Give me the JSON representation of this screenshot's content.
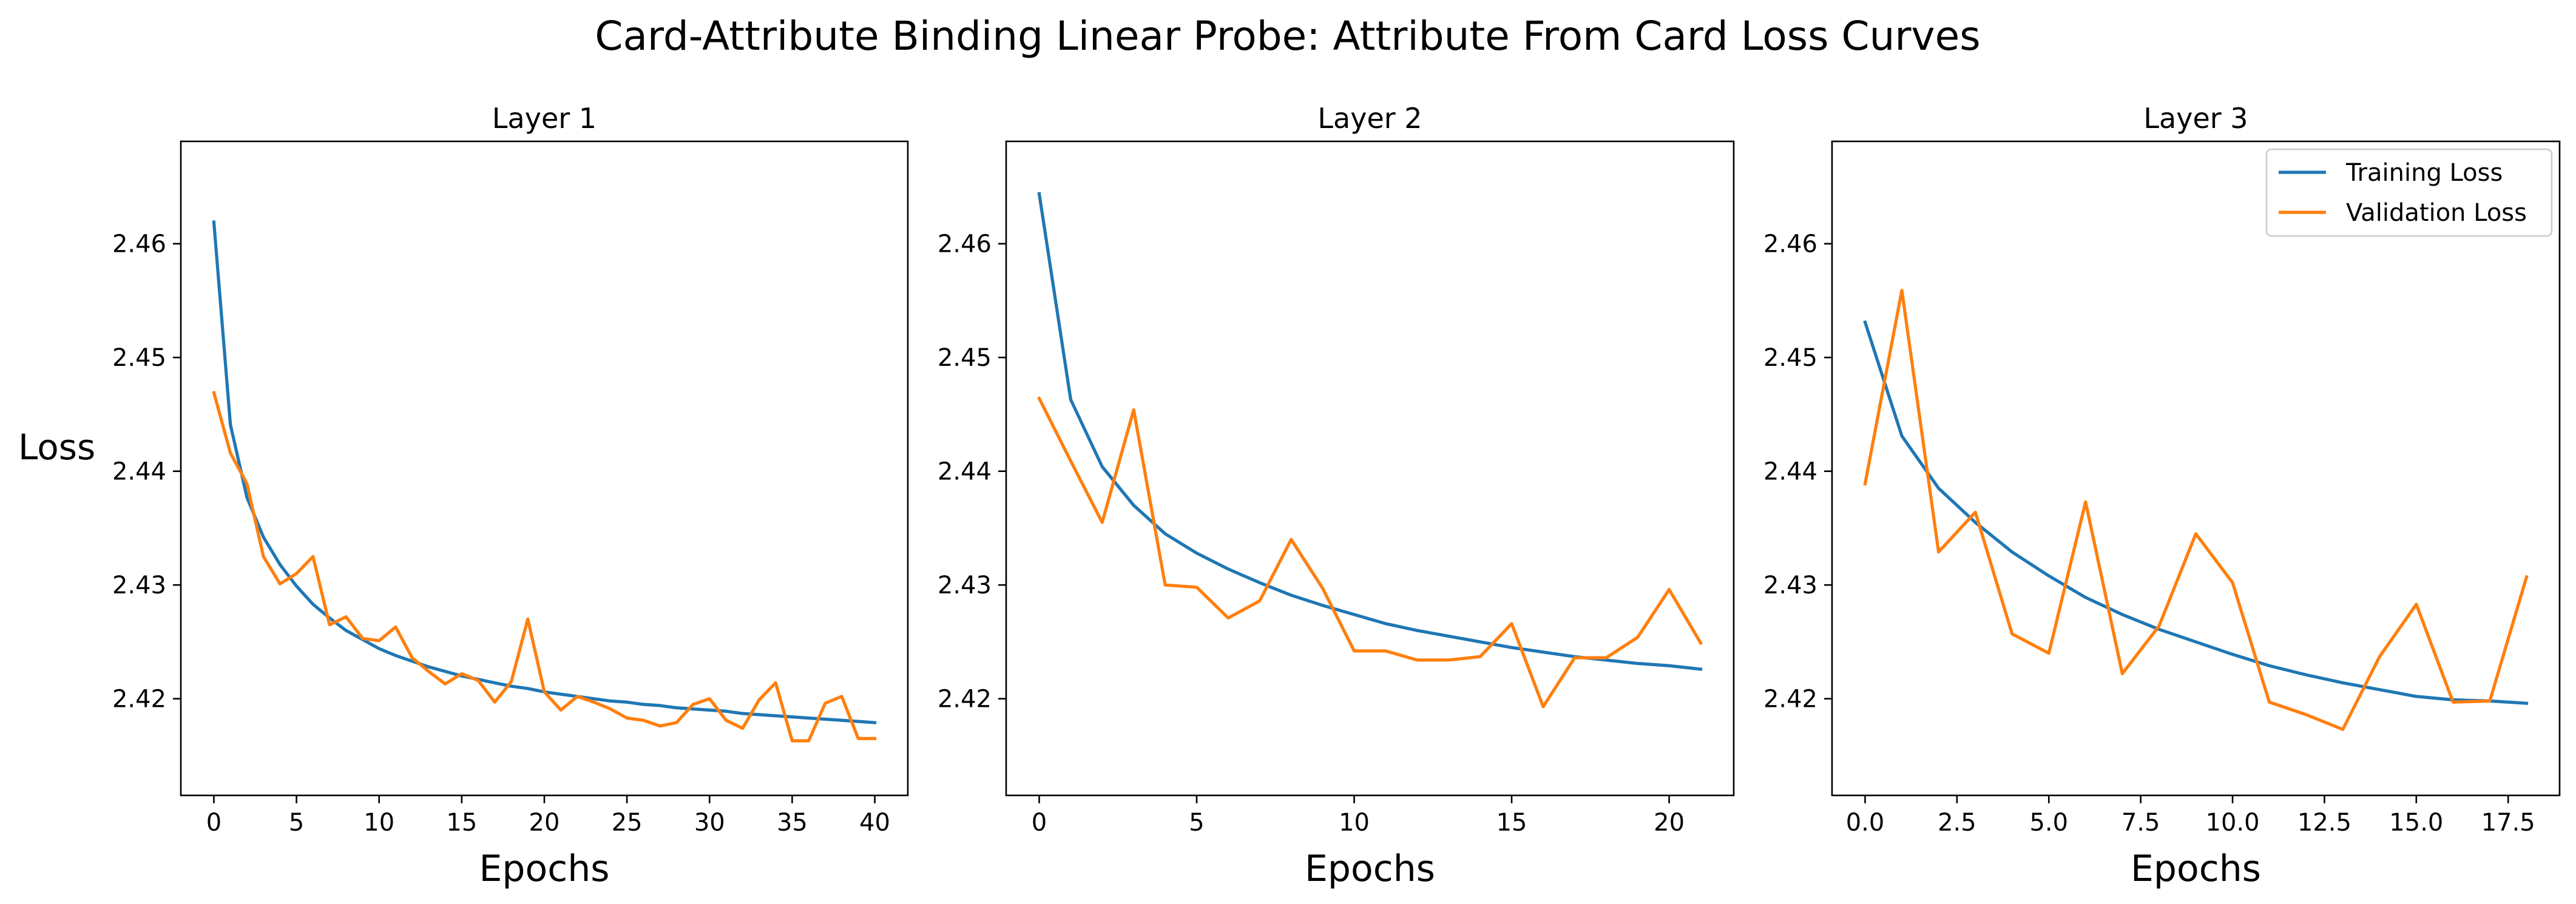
{
  "figure_title": "Card-Attribute Binding Linear Probe: Attribute From Card Loss Curves",
  "colors": {
    "training": "#1f77b4",
    "validation": "#ff7f0e",
    "axes": "#000000"
  },
  "chart_data": [
    {
      "type": "line",
      "title": "Layer 1",
      "xlabel": "Epochs",
      "ylabel": "Loss",
      "xlim": [
        -2,
        42
      ],
      "ylim": [
        2.4115,
        2.469
      ],
      "xticks": [
        0,
        5,
        10,
        15,
        20,
        25,
        30,
        35,
        40
      ],
      "xtick_labels": [
        "0",
        "5",
        "10",
        "15",
        "20",
        "25",
        "30",
        "35",
        "40"
      ],
      "yticks": [
        2.42,
        2.43,
        2.44,
        2.45,
        2.46
      ],
      "ytick_labels": [
        "2.42",
        "2.43",
        "2.44",
        "2.45",
        "2.46"
      ],
      "legend": false,
      "series": [
        {
          "name": "Training Loss",
          "x": [
            0,
            1,
            2,
            3,
            4,
            5,
            6,
            7,
            8,
            9,
            10,
            11,
            12,
            13,
            14,
            15,
            16,
            17,
            18,
            19,
            20,
            21,
            22,
            23,
            24,
            25,
            26,
            27,
            28,
            29,
            30,
            31,
            32,
            33,
            34,
            35,
            36,
            37,
            38,
            39,
            40
          ],
          "values": [
            2.4619,
            2.4441,
            2.4377,
            2.4342,
            2.4318,
            2.4299,
            2.4283,
            2.4271,
            2.426,
            2.4252,
            2.4244,
            2.4238,
            2.4233,
            2.4228,
            2.4224,
            2.422,
            2.4217,
            2.4214,
            2.4211,
            2.4209,
            2.4206,
            2.4204,
            2.4202,
            2.42,
            2.4198,
            2.4197,
            2.4195,
            2.4194,
            2.4192,
            2.4191,
            2.419,
            2.4189,
            2.4187,
            2.4186,
            2.4185,
            2.4184,
            2.4183,
            2.4182,
            2.4181,
            2.418,
            2.4179
          ]
        },
        {
          "name": "Validation Loss",
          "x": [
            0,
            1,
            2,
            3,
            4,
            5,
            6,
            7,
            8,
            9,
            10,
            11,
            12,
            13,
            14,
            15,
            16,
            17,
            18,
            19,
            20,
            21,
            22,
            23,
            24,
            25,
            26,
            27,
            28,
            29,
            30,
            31,
            32,
            33,
            34,
            35,
            36,
            37,
            38,
            39,
            40
          ],
          "values": [
            2.4469,
            2.4416,
            2.4389,
            2.4325,
            2.4301,
            2.431,
            2.4325,
            2.4265,
            2.4272,
            2.4253,
            2.4251,
            2.4263,
            2.4236,
            2.4224,
            2.4213,
            2.4222,
            2.4216,
            2.4197,
            2.4215,
            2.427,
            2.4206,
            2.419,
            2.4202,
            2.4197,
            2.4191,
            2.4183,
            2.4181,
            2.4176,
            2.4179,
            2.4195,
            2.42,
            2.4181,
            2.4174,
            2.4199,
            2.4214,
            2.4163,
            2.4163,
            2.4196,
            2.4202,
            2.4165,
            2.4165
          ]
        }
      ]
    },
    {
      "type": "line",
      "title": "Layer 2",
      "xlabel": "Epochs",
      "ylabel": "",
      "xlim": [
        -1.05,
        22.05
      ],
      "ylim": [
        2.4115,
        2.469
      ],
      "xticks": [
        0,
        5,
        10,
        15,
        20
      ],
      "xtick_labels": [
        "0",
        "5",
        "10",
        "15",
        "20"
      ],
      "yticks": [
        2.42,
        2.43,
        2.44,
        2.45,
        2.46
      ],
      "ytick_labels": [
        "2.42",
        "2.43",
        "2.44",
        "2.45",
        "2.46"
      ],
      "legend": false,
      "series": [
        {
          "name": "Training Loss",
          "x": [
            0,
            1,
            2,
            3,
            4,
            5,
            6,
            7,
            8,
            9,
            10,
            11,
            12,
            13,
            14,
            15,
            16,
            17,
            18,
            19,
            20,
            21
          ],
          "values": [
            2.4644,
            2.4463,
            2.4404,
            2.437,
            2.4345,
            2.4328,
            2.4314,
            2.4302,
            2.4291,
            2.4282,
            2.4274,
            2.4266,
            2.426,
            2.4255,
            2.425,
            2.4245,
            2.4241,
            2.4237,
            2.4234,
            2.4231,
            2.4229,
            2.4226
          ]
        },
        {
          "name": "Validation Loss",
          "x": [
            0,
            1,
            2,
            3,
            4,
            5,
            6,
            7,
            8,
            9,
            10,
            11,
            12,
            13,
            14,
            15,
            16,
            17,
            18,
            19,
            20,
            21
          ],
          "values": [
            2.4464,
            2.4409,
            2.4355,
            2.4454,
            2.43,
            2.4298,
            2.4271,
            2.4286,
            2.434,
            2.4297,
            2.4242,
            2.4242,
            2.4234,
            2.4234,
            2.4237,
            2.4266,
            2.4193,
            2.4236,
            2.4236,
            2.4254,
            2.4296,
            2.4249
          ]
        }
      ]
    },
    {
      "type": "line",
      "title": "Layer 3",
      "xlabel": "Epochs",
      "ylabel": "",
      "xlim": [
        -0.9,
        18.9
      ],
      "ylim": [
        2.4115,
        2.469
      ],
      "xticks": [
        0,
        2.5,
        5,
        7.5,
        10,
        12.5,
        15,
        17.5
      ],
      "xtick_labels": [
        "0.0",
        "2.5",
        "5.0",
        "7.5",
        "10.0",
        "12.5",
        "15.0",
        "17.5"
      ],
      "yticks": [
        2.42,
        2.43,
        2.44,
        2.45,
        2.46
      ],
      "ytick_labels": [
        "2.42",
        "2.43",
        "2.44",
        "2.45",
        "2.46"
      ],
      "legend": true,
      "legend_position": "top-right",
      "series": [
        {
          "name": "Training Loss",
          "x": [
            0,
            1,
            2,
            3,
            4,
            5,
            6,
            7,
            8,
            9,
            10,
            11,
            12,
            13,
            14,
            15,
            16,
            17,
            18
          ],
          "values": [
            2.4531,
            2.4431,
            2.4385,
            2.4355,
            2.4329,
            2.4308,
            2.4289,
            2.4274,
            2.4261,
            2.425,
            2.4239,
            2.4229,
            2.4221,
            2.4214,
            2.4208,
            2.4202,
            2.4199,
            2.4198,
            2.4196
          ]
        },
        {
          "name": "Validation Loss",
          "x": [
            0,
            1,
            2,
            3,
            4,
            5,
            6,
            7,
            8,
            9,
            10,
            11,
            12,
            13,
            14,
            15,
            16,
            17,
            18
          ],
          "values": [
            2.4389,
            2.4559,
            2.4329,
            2.4364,
            2.4257,
            2.424,
            2.4373,
            2.4222,
            2.4264,
            2.4345,
            2.4302,
            2.4197,
            2.4186,
            2.4173,
            2.4237,
            2.4283,
            2.4197,
            2.4198,
            2.4307
          ]
        }
      ]
    }
  ]
}
